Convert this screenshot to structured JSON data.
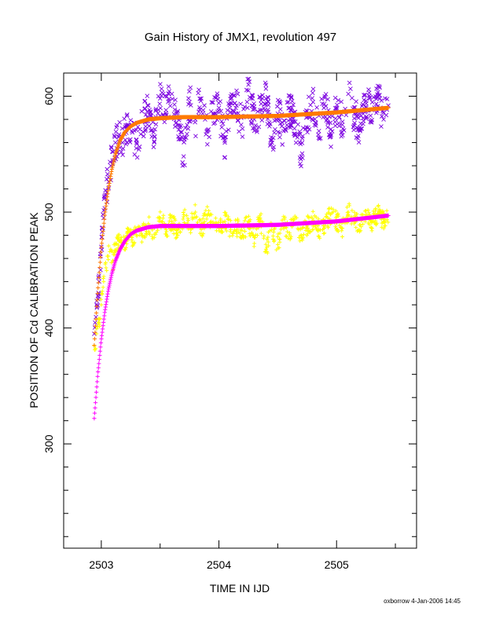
{
  "chart_data": {
    "type": "scatter",
    "title": "Gain History of JMX1, revolution 497",
    "xlabel": "TIME IN IJD",
    "ylabel": "POSITION OF Cd CALIBRATION PEAK",
    "footer": "oxborrow   4-Jan-2006 14:45",
    "xlim": [
      2502.68,
      2505.68
    ],
    "ylim": [
      210,
      620
    ],
    "x_ticks": [
      2503,
      2504,
      2505
    ],
    "x_tick_labels": [
      "2503",
      "2504",
      "2505"
    ],
    "y_ticks": [
      300,
      400,
      500,
      600
    ],
    "y_tick_labels": [
      "300",
      "400",
      "500",
      "600"
    ],
    "grid": false,
    "legend": "none",
    "series": [
      {
        "marker": "x",
        "color": "#7b00e0",
        "x": [
          2502.94,
          2502.96,
          2502.98,
          2503.0,
          2503.02,
          2503.04,
          2503.06,
          2503.08,
          2503.1,
          2503.12,
          2503.15,
          2503.18,
          2503.22,
          2503.26,
          2503.3,
          2503.35,
          2503.4,
          2503.45,
          2503.5,
          2503.55,
          2503.6,
          2503.65,
          2503.7,
          2503.75,
          2503.8,
          2503.85,
          2503.9,
          2503.95,
          2504.0,
          2504.05,
          2504.1,
          2504.15,
          2504.2,
          2504.25,
          2504.3,
          2504.35,
          2504.4,
          2504.45,
          2504.5,
          2504.55,
          2504.6,
          2504.65,
          2504.7,
          2504.75,
          2504.8,
          2504.85,
          2504.9,
          2504.95,
          2505.0,
          2505.05,
          2505.1,
          2505.15,
          2505.2,
          2505.25,
          2505.3,
          2505.35,
          2505.4,
          2505.44
        ],
        "y": [
          395,
          420,
          445,
          470,
          495,
          515,
          530,
          540,
          552,
          560,
          565,
          560,
          575,
          570,
          560,
          578,
          592,
          565,
          598,
          588,
          602,
          575,
          548,
          595,
          580,
          598,
          570,
          585,
          590,
          560,
          600,
          592,
          572,
          605,
          580,
          588,
          598,
          562,
          585,
          570,
          590,
          578,
          548,
          582,
          595,
          570,
          600,
          565,
          590,
          578,
          602,
          585,
          570,
          596,
          588,
          600,
          580,
          592
        ]
      },
      {
        "marker": "+",
        "color": "#ffff00",
        "x": [
          2502.94,
          2502.96,
          2502.98,
          2503.0,
          2503.02,
          2503.04,
          2503.06,
          2503.08,
          2503.1,
          2503.12,
          2503.15,
          2503.18,
          2503.22,
          2503.26,
          2503.3,
          2503.35,
          2503.4,
          2503.45,
          2503.5,
          2503.55,
          2503.6,
          2503.65,
          2503.7,
          2503.75,
          2503.8,
          2503.85,
          2503.9,
          2503.95,
          2504.0,
          2504.05,
          2504.1,
          2504.15,
          2504.2,
          2504.25,
          2504.3,
          2504.35,
          2504.4,
          2504.45,
          2504.5,
          2504.55,
          2504.6,
          2504.65,
          2504.7,
          2504.75,
          2504.8,
          2504.85,
          2504.9,
          2504.95,
          2505.0,
          2505.05,
          2505.1,
          2505.15,
          2505.2,
          2505.25,
          2505.3,
          2505.35,
          2505.4,
          2505.44
        ],
        "y": [
          385,
          395,
          405,
          420,
          440,
          452,
          462,
          468,
          458,
          472,
          475,
          470,
          480,
          476,
          484,
          480,
          490,
          478,
          495,
          485,
          492,
          480,
          496,
          488,
          500,
          485,
          497,
          490,
          486,
          492,
          485,
          488,
          480,
          492,
          478,
          495,
          468,
          488,
          472,
          490,
          482,
          495,
          480,
          488,
          493,
          485,
          490,
          498,
          492,
          486,
          500,
          494,
          489,
          496,
          491,
          498,
          494,
          497
        ]
      },
      {
        "marker": "+",
        "color": "#ff7a00",
        "fit": "gain_orange",
        "x": [
          2502.94,
          2502.97,
          2503.0,
          2503.03,
          2503.06,
          2503.09,
          2503.12,
          2503.16,
          2503.2,
          2503.25,
          2503.3,
          2503.4,
          2503.5,
          2503.7,
          2504.0,
          2504.5,
          2505.0,
          2505.44
        ],
        "y": [
          385,
          432,
          469,
          498,
          520,
          537,
          550,
          562,
          569,
          574,
          577,
          580,
          581,
          582,
          582,
          583,
          586,
          590
        ]
      },
      {
        "marker": "+",
        "color": "#ff00ff",
        "fit": "gain_magenta",
        "x": [
          2502.94,
          2502.97,
          2503.0,
          2503.03,
          2503.06,
          2503.09,
          2503.12,
          2503.16,
          2503.2,
          2503.25,
          2503.3,
          2503.4,
          2503.5,
          2503.7,
          2504.0,
          2504.5,
          2505.0,
          2505.44
        ],
        "y": [
          322,
          360,
          390,
          414,
          433,
          447,
          458,
          468,
          475,
          481,
          484,
          487,
          488,
          488,
          488,
          489,
          492,
          497
        ]
      }
    ]
  }
}
